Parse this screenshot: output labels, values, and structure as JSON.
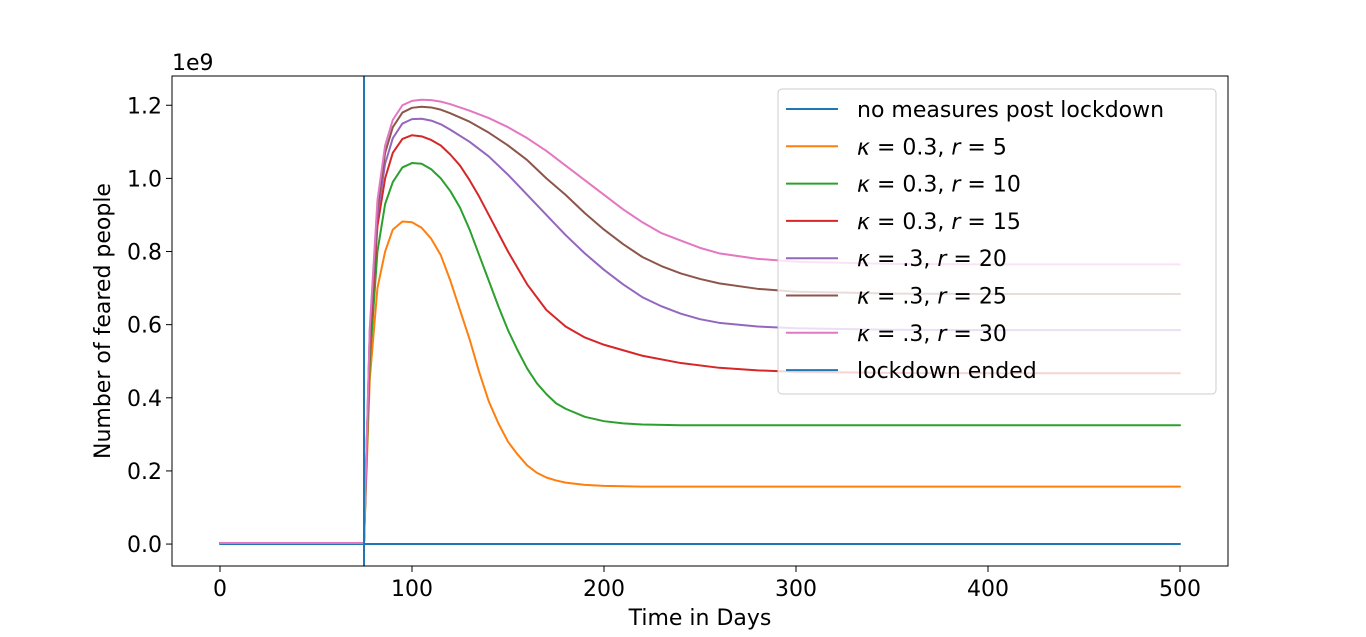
{
  "chart_data": {
    "type": "line",
    "xlabel": "Time in Days",
    "ylabel": "Number of feared people",
    "y_offset_label": "1e9",
    "xlim": [
      -25,
      525
    ],
    "ylim": [
      -0.06,
      1.28
    ],
    "x_ticks": [
      0,
      100,
      200,
      300,
      400,
      500
    ],
    "x_tick_labels": [
      "0",
      "100",
      "200",
      "300",
      "400",
      "500"
    ],
    "y_ticks": [
      0.0,
      0.2,
      0.4,
      0.6,
      0.8,
      1.0,
      1.2
    ],
    "y_tick_labels": [
      "0.0",
      "0.2",
      "0.4",
      "0.6",
      "0.8",
      "1.0",
      "1.2"
    ],
    "grid": false,
    "legend_position": "top-right",
    "lockdown_end_day": 75,
    "series": [
      {
        "name": "no measures post lockdown",
        "color": "#1f77b4",
        "x": [
          0,
          75,
          100,
          200,
          300,
          400,
          500
        ],
        "y": [
          0,
          0,
          0,
          0,
          0,
          0,
          0
        ]
      },
      {
        "name": "κ = 0.3, r = 5",
        "label_parts": [
          "κ",
          " = 0.3, ",
          "r",
          " = 5"
        ],
        "color": "#ff7f0e",
        "x": [
          0,
          75,
          78,
          82,
          86,
          90,
          95,
          100,
          105,
          110,
          115,
          120,
          125,
          130,
          135,
          140,
          145,
          150,
          155,
          160,
          165,
          170,
          175,
          180,
          190,
          200,
          210,
          220,
          240,
          260,
          300,
          350,
          400,
          450,
          500
        ],
        "y": [
          0.003,
          0.003,
          0.45,
          0.7,
          0.8,
          0.86,
          0.882,
          0.88,
          0.865,
          0.835,
          0.79,
          0.72,
          0.64,
          0.56,
          0.47,
          0.39,
          0.33,
          0.28,
          0.245,
          0.215,
          0.195,
          0.182,
          0.174,
          0.168,
          0.162,
          0.159,
          0.158,
          0.157,
          0.157,
          0.157,
          0.157,
          0.157,
          0.157,
          0.157,
          0.157
        ]
      },
      {
        "name": "κ = 0.3, r = 10",
        "label_parts": [
          "κ",
          " = 0.3, ",
          "r",
          " = 10"
        ],
        "color": "#2ca02c",
        "x": [
          0,
          75,
          78,
          82,
          86,
          90,
          95,
          100,
          105,
          110,
          115,
          120,
          125,
          130,
          135,
          140,
          145,
          150,
          155,
          160,
          165,
          170,
          175,
          180,
          190,
          200,
          210,
          220,
          240,
          260,
          300,
          350,
          400,
          450,
          500
        ],
        "y": [
          0.003,
          0.003,
          0.5,
          0.8,
          0.93,
          0.99,
          1.03,
          1.042,
          1.04,
          1.025,
          1.0,
          0.965,
          0.92,
          0.86,
          0.79,
          0.72,
          0.65,
          0.585,
          0.53,
          0.48,
          0.44,
          0.41,
          0.385,
          0.37,
          0.348,
          0.336,
          0.33,
          0.327,
          0.325,
          0.325,
          0.325,
          0.325,
          0.325,
          0.325,
          0.325
        ]
      },
      {
        "name": "κ = 0.3, r = 15",
        "label_parts": [
          "κ",
          " = 0.3, ",
          "r",
          " = 15"
        ],
        "color": "#d62728",
        "x": [
          0,
          75,
          78,
          82,
          86,
          90,
          95,
          100,
          105,
          110,
          115,
          120,
          125,
          130,
          135,
          140,
          145,
          150,
          155,
          160,
          165,
          170,
          180,
          190,
          200,
          210,
          220,
          240,
          260,
          280,
          300,
          350,
          400,
          450,
          500
        ],
        "y": [
          0.003,
          0.003,
          0.55,
          0.87,
          1.0,
          1.07,
          1.108,
          1.118,
          1.115,
          1.105,
          1.09,
          1.065,
          1.035,
          0.995,
          0.95,
          0.9,
          0.85,
          0.8,
          0.755,
          0.71,
          0.675,
          0.64,
          0.595,
          0.565,
          0.545,
          0.53,
          0.515,
          0.495,
          0.482,
          0.475,
          0.471,
          0.468,
          0.467,
          0.467,
          0.467
        ]
      },
      {
        "name": "κ = .3, r = 20",
        "label_parts": [
          "κ",
          " = .3, ",
          "r",
          " = 20"
        ],
        "color": "#9467bd",
        "x": [
          0,
          75,
          78,
          82,
          86,
          90,
          95,
          100,
          105,
          110,
          115,
          120,
          130,
          140,
          150,
          160,
          170,
          180,
          190,
          200,
          210,
          220,
          230,
          240,
          250,
          260,
          280,
          300,
          350,
          400,
          450,
          500
        ],
        "y": [
          0.003,
          0.003,
          0.57,
          0.9,
          1.04,
          1.11,
          1.15,
          1.162,
          1.163,
          1.158,
          1.148,
          1.133,
          1.1,
          1.06,
          1.01,
          0.955,
          0.9,
          0.845,
          0.795,
          0.75,
          0.71,
          0.675,
          0.65,
          0.63,
          0.615,
          0.605,
          0.595,
          0.59,
          0.586,
          0.585,
          0.585,
          0.585
        ]
      },
      {
        "name": "κ = .3, r = 25",
        "label_parts": [
          "κ",
          " = .3, ",
          "r",
          " = 25"
        ],
        "color": "#8c564b",
        "x": [
          0,
          75,
          78,
          82,
          86,
          90,
          95,
          100,
          105,
          110,
          115,
          120,
          130,
          140,
          150,
          160,
          170,
          180,
          190,
          200,
          210,
          220,
          230,
          240,
          250,
          260,
          280,
          300,
          350,
          400,
          450,
          500
        ],
        "y": [
          0.003,
          0.003,
          0.58,
          0.92,
          1.07,
          1.14,
          1.18,
          1.193,
          1.196,
          1.194,
          1.188,
          1.178,
          1.155,
          1.125,
          1.09,
          1.05,
          1.0,
          0.955,
          0.905,
          0.86,
          0.82,
          0.785,
          0.76,
          0.74,
          0.725,
          0.713,
          0.698,
          0.69,
          0.685,
          0.684,
          0.684,
          0.684
        ]
      },
      {
        "name": "κ = .3, r = 30",
        "label_parts": [
          "κ",
          " = .3, ",
          "r",
          " = 30"
        ],
        "color": "#e377c2",
        "x": [
          0,
          75,
          78,
          82,
          86,
          90,
          95,
          100,
          105,
          110,
          115,
          120,
          130,
          140,
          150,
          160,
          170,
          180,
          190,
          200,
          210,
          220,
          230,
          240,
          250,
          260,
          280,
          300,
          350,
          400,
          450,
          500
        ],
        "y": [
          0.003,
          0.003,
          0.59,
          0.94,
          1.09,
          1.16,
          1.2,
          1.212,
          1.215,
          1.214,
          1.21,
          1.203,
          1.185,
          1.165,
          1.14,
          1.11,
          1.075,
          1.035,
          0.995,
          0.955,
          0.915,
          0.88,
          0.85,
          0.83,
          0.81,
          0.795,
          0.78,
          0.772,
          0.766,
          0.765,
          0.765,
          0.765
        ]
      },
      {
        "name": "lockdown ended",
        "color": "#1f77b4",
        "kind": "vline",
        "x_value": 75
      }
    ]
  }
}
